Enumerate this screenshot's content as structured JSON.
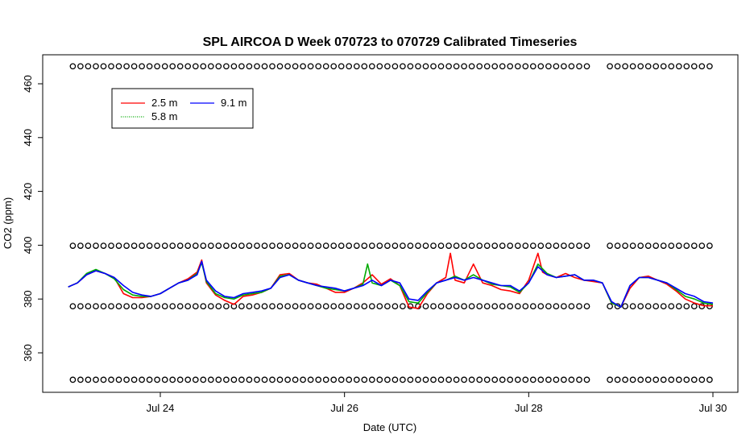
{
  "chart_data": {
    "type": "line",
    "title": "SPL AIRCOA D  Week 070723 to 070729  Calibrated Timeseries",
    "xlabel": "Date (UTC)",
    "ylabel": "CO2 (ppm)",
    "xlim": [
      23.0,
      30.0
    ],
    "ylim": [
      345,
      470
    ],
    "x_ticks": [
      {
        "value": 24,
        "label": "Jul 24"
      },
      {
        "value": 26,
        "label": "Jul 26"
      },
      {
        "value": 28,
        "label": "Jul 28"
      },
      {
        "value": 30,
        "label": "Jul 30"
      }
    ],
    "y_ticks": [
      360,
      380,
      400,
      420,
      440,
      460
    ],
    "grid": false,
    "legend": {
      "placement": "top-left",
      "entries": [
        {
          "label": "2.5 m",
          "color": "#ff0000"
        },
        {
          "label": "5.8 m",
          "color": "#00aa00"
        },
        {
          "label": "9.1 m",
          "color": "#0000ff"
        }
      ]
    },
    "series": [
      {
        "name": "9.1 m",
        "color": "#0000ff",
        "x": [
          23.0,
          23.1,
          23.2,
          23.3,
          23.4,
          23.5,
          23.6,
          23.7,
          23.8,
          23.9,
          24.0,
          24.1,
          24.2,
          24.3,
          24.4,
          24.45,
          24.5,
          24.6,
          24.7,
          24.8,
          24.9,
          25.0,
          25.1,
          25.2,
          25.3,
          25.4,
          25.5,
          25.6,
          25.7,
          25.8,
          25.9,
          26.0,
          26.1,
          26.2,
          26.3,
          26.4,
          26.5,
          26.6,
          26.7,
          26.8,
          26.9,
          27.0,
          27.1,
          27.2,
          27.3,
          27.4,
          27.5,
          27.6,
          27.7,
          27.8,
          27.9,
          28.0,
          28.1,
          28.2,
          28.3,
          28.4,
          28.5,
          28.6,
          28.7,
          28.8,
          28.9,
          29.0,
          29.1,
          29.2,
          29.3,
          29.4,
          29.5,
          29.6,
          29.7,
          29.8,
          29.9,
          30.0
        ],
        "y": [
          384.5,
          386,
          389,
          390.5,
          389.5,
          388,
          385,
          382.5,
          381.5,
          381,
          382,
          384,
          386,
          387,
          389,
          394,
          387,
          383,
          381,
          380.5,
          382,
          382.5,
          383,
          384,
          388,
          389,
          387,
          386,
          385,
          384.5,
          384,
          383,
          384,
          385,
          387,
          385,
          387,
          386,
          380,
          379.5,
          383,
          386,
          387,
          388,
          387,
          388,
          387,
          386,
          385,
          385,
          383,
          386,
          392,
          389,
          388,
          388.5,
          389,
          387,
          387,
          386,
          379,
          377,
          385,
          388,
          388,
          387,
          386,
          384,
          382,
          381,
          379,
          378.5
        ]
      },
      {
        "name": "5.8 m",
        "color": "#00aa00",
        "x": [
          23.0,
          23.1,
          23.2,
          23.3,
          23.4,
          23.5,
          23.6,
          23.7,
          23.8,
          23.9,
          24.0,
          24.1,
          24.2,
          24.3,
          24.4,
          24.45,
          24.5,
          24.6,
          24.7,
          24.8,
          24.9,
          25.0,
          25.1,
          25.2,
          25.3,
          25.4,
          25.5,
          25.6,
          25.7,
          25.8,
          25.9,
          26.0,
          26.1,
          26.2,
          26.25,
          26.3,
          26.4,
          26.5,
          26.6,
          26.7,
          26.8,
          26.9,
          27.0,
          27.1,
          27.2,
          27.3,
          27.4,
          27.5,
          27.6,
          27.7,
          27.8,
          27.9,
          28.0,
          28.1,
          28.2,
          28.3,
          28.4,
          28.5,
          28.6,
          28.7,
          28.8,
          28.9,
          29.0,
          29.1,
          29.2,
          29.3,
          29.4,
          29.5,
          29.6,
          29.7,
          29.8,
          29.9,
          30.0
        ],
        "y": [
          384.5,
          386,
          389.5,
          391,
          389.5,
          387.5,
          383.5,
          381.5,
          381,
          381,
          382,
          384,
          386,
          387,
          389.5,
          393.5,
          386.5,
          382,
          380.5,
          380,
          381.5,
          382,
          382.5,
          384,
          388.5,
          389,
          387,
          386,
          385,
          384,
          383.5,
          383,
          384,
          385.5,
          393,
          386,
          385,
          387,
          385,
          379,
          378.5,
          382.5,
          386,
          387,
          388.5,
          387,
          389,
          387,
          385.5,
          385,
          384.5,
          382.5,
          386,
          393,
          389.5,
          388,
          388.5,
          389,
          387,
          387,
          386,
          378.5,
          377,
          385,
          388,
          388,
          387,
          386,
          383.5,
          381,
          380,
          378.5,
          378
        ]
      },
      {
        "name": "2.5 m",
        "color": "#ff0000",
        "x": [
          23.0,
          23.1,
          23.2,
          23.3,
          23.4,
          23.5,
          23.6,
          23.7,
          23.8,
          23.9,
          24.0,
          24.1,
          24.2,
          24.3,
          24.4,
          24.45,
          24.5,
          24.6,
          24.7,
          24.8,
          24.9,
          25.0,
          25.1,
          25.2,
          25.3,
          25.4,
          25.5,
          25.6,
          25.7,
          25.8,
          25.9,
          26.0,
          26.1,
          26.2,
          26.3,
          26.4,
          26.5,
          26.6,
          26.7,
          26.8,
          26.9,
          27.0,
          27.1,
          27.15,
          27.2,
          27.3,
          27.4,
          27.5,
          27.6,
          27.7,
          27.8,
          27.9,
          28.0,
          28.1,
          28.15,
          28.2,
          28.3,
          28.4,
          28.5,
          28.6,
          28.7,
          28.8,
          28.9,
          29.0,
          29.1,
          29.2,
          29.3,
          29.4,
          29.5,
          29.6,
          29.7,
          29.8,
          29.9,
          30.0
        ],
        "y": [
          384.5,
          386,
          389,
          390.5,
          389.5,
          388,
          382,
          380.5,
          380.5,
          381,
          382,
          384,
          386,
          387.5,
          390,
          394.5,
          386,
          381.5,
          379.5,
          378,
          381,
          381.5,
          382.5,
          384,
          389,
          389.5,
          387,
          386,
          385.5,
          384,
          382.5,
          382.5,
          384,
          386,
          389,
          385.5,
          387.5,
          385,
          377,
          376.5,
          382,
          386,
          388,
          397,
          387,
          386,
          393,
          386,
          385,
          383.5,
          383,
          382,
          387,
          397,
          390,
          389,
          388,
          389.5,
          388,
          387,
          386.5,
          386,
          378.5,
          377,
          384,
          388,
          388.5,
          387,
          385.5,
          383,
          380,
          378.5,
          377.5,
          377.5
        ]
      },
      {
        "name": "",
        "color": "#000000",
        "marker": "circle",
        "values_y": [
          466.5,
          399.8,
          377.3,
          350
        ],
        "x_start": 23.0,
        "x_end": 30.0,
        "interval_days": 0.0833,
        "gap": [
          28.65,
          28.85
        ]
      }
    ]
  }
}
